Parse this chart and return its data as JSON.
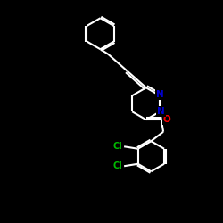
{
  "bg_color": "#000000",
  "bond_color": "#ffffff",
  "N_color": "#0000cd",
  "O_color": "#ff0000",
  "Cl_color": "#00bb00",
  "line_width": 1.5,
  "figsize": [
    2.5,
    2.5
  ],
  "dpi": 100,
  "xlim": [
    0,
    10
  ],
  "ylim": [
    0,
    10
  ]
}
